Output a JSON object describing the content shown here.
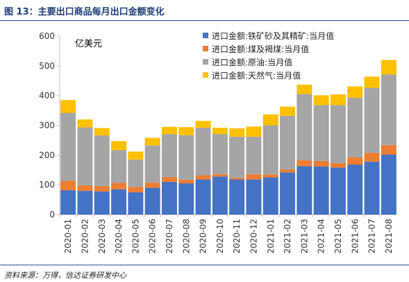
{
  "figure": {
    "title": "图 13：主要出口商品每月出口金额变化",
    "source": "资料来源：万得，信达证券研发中心"
  },
  "chart_data": {
    "type": "bar",
    "stacked": true,
    "unit_label": "亿美元",
    "ylim": [
      0,
      600
    ],
    "yticks": [
      0,
      100,
      200,
      300,
      400,
      500,
      600
    ],
    "grid": false,
    "legend_position": "top-right",
    "categories": [
      "2020-01",
      "2020-02",
      "2020-03",
      "2020-04",
      "2020-05",
      "2020-06",
      "2020-07",
      "2020-08",
      "2020-09",
      "2020-10",
      "2020-11",
      "2020-12",
      "2021-01",
      "2021-02",
      "2021-03",
      "2021-04",
      "2021-05",
      "2021-06",
      "2021-07",
      "2021-08"
    ],
    "series": [
      {
        "name": "进口金额:铁矿砂及其精矿:当月值",
        "color": "#4472c4",
        "values": [
          82,
          80,
          78,
          85,
          75,
          90,
          110,
          105,
          118,
          128,
          118,
          118,
          125,
          142,
          163,
          162,
          158,
          168,
          178,
          202
        ]
      },
      {
        "name": "进口金额:煤及褐煤:当月值",
        "color": "#ed7d31",
        "values": [
          32,
          18,
          18,
          22,
          18,
          18,
          16,
          12,
          14,
          8,
          6,
          18,
          10,
          10,
          20,
          18,
          15,
          25,
          30,
          32
        ]
      },
      {
        "name": "进口金额:原油:当月值",
        "color": "#a5a5a5",
        "values": [
          228,
          195,
          170,
          110,
          92,
          125,
          145,
          150,
          160,
          135,
          138,
          126,
          165,
          180,
          222,
          188,
          195,
          200,
          218,
          237
        ]
      },
      {
        "name": "进口金额:天然气:当月值",
        "color": "#ffc000",
        "values": [
          43,
          27,
          25,
          30,
          27,
          25,
          24,
          27,
          23,
          21,
          28,
          34,
          37,
          31,
          32,
          33,
          36,
          38,
          38,
          49
        ]
      }
    ]
  }
}
